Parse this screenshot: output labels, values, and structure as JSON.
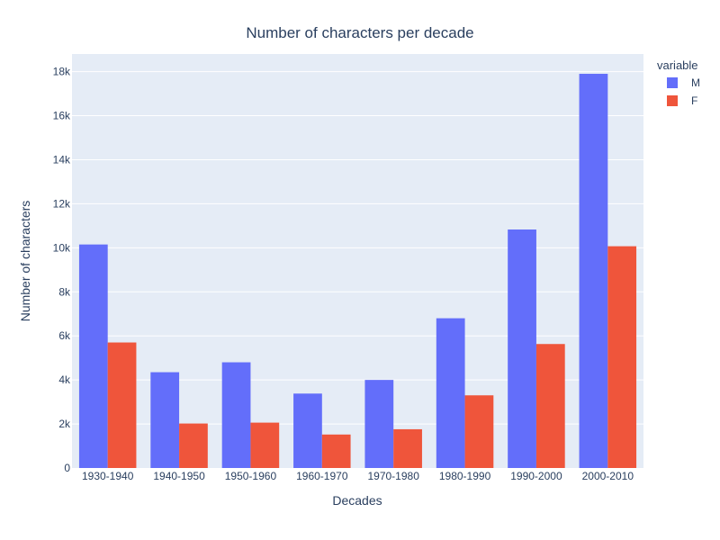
{
  "chart_data": {
    "type": "bar",
    "title": "Number of characters per decade",
    "xlabel": "Decades",
    "ylabel": "Number of characters",
    "categories": [
      "1930-1940",
      "1940-1950",
      "1950-1960",
      "1960-1970",
      "1970-1980",
      "1980-1990",
      "1990-2000",
      "2000-2010"
    ],
    "series": [
      {
        "name": "M",
        "color": "#636efa",
        "values": [
          10150,
          4350,
          4800,
          3380,
          4000,
          6800,
          10830,
          17900
        ]
      },
      {
        "name": "F",
        "color": "#ef553b",
        "values": [
          5700,
          2020,
          2060,
          1520,
          1760,
          3300,
          5630,
          10070
        ]
      }
    ],
    "ylim": [
      0,
      18800
    ],
    "yticks": [
      0,
      2000,
      4000,
      6000,
      8000,
      10000,
      12000,
      14000,
      16000,
      18000
    ],
    "ytick_labels": [
      "0",
      "2k",
      "4k",
      "6k",
      "8k",
      "10k",
      "12k",
      "14k",
      "16k",
      "18k"
    ],
    "legend": {
      "title": "variable",
      "placement": "right"
    },
    "grid": true,
    "plot_bgcolor": "#e5ecf6"
  }
}
